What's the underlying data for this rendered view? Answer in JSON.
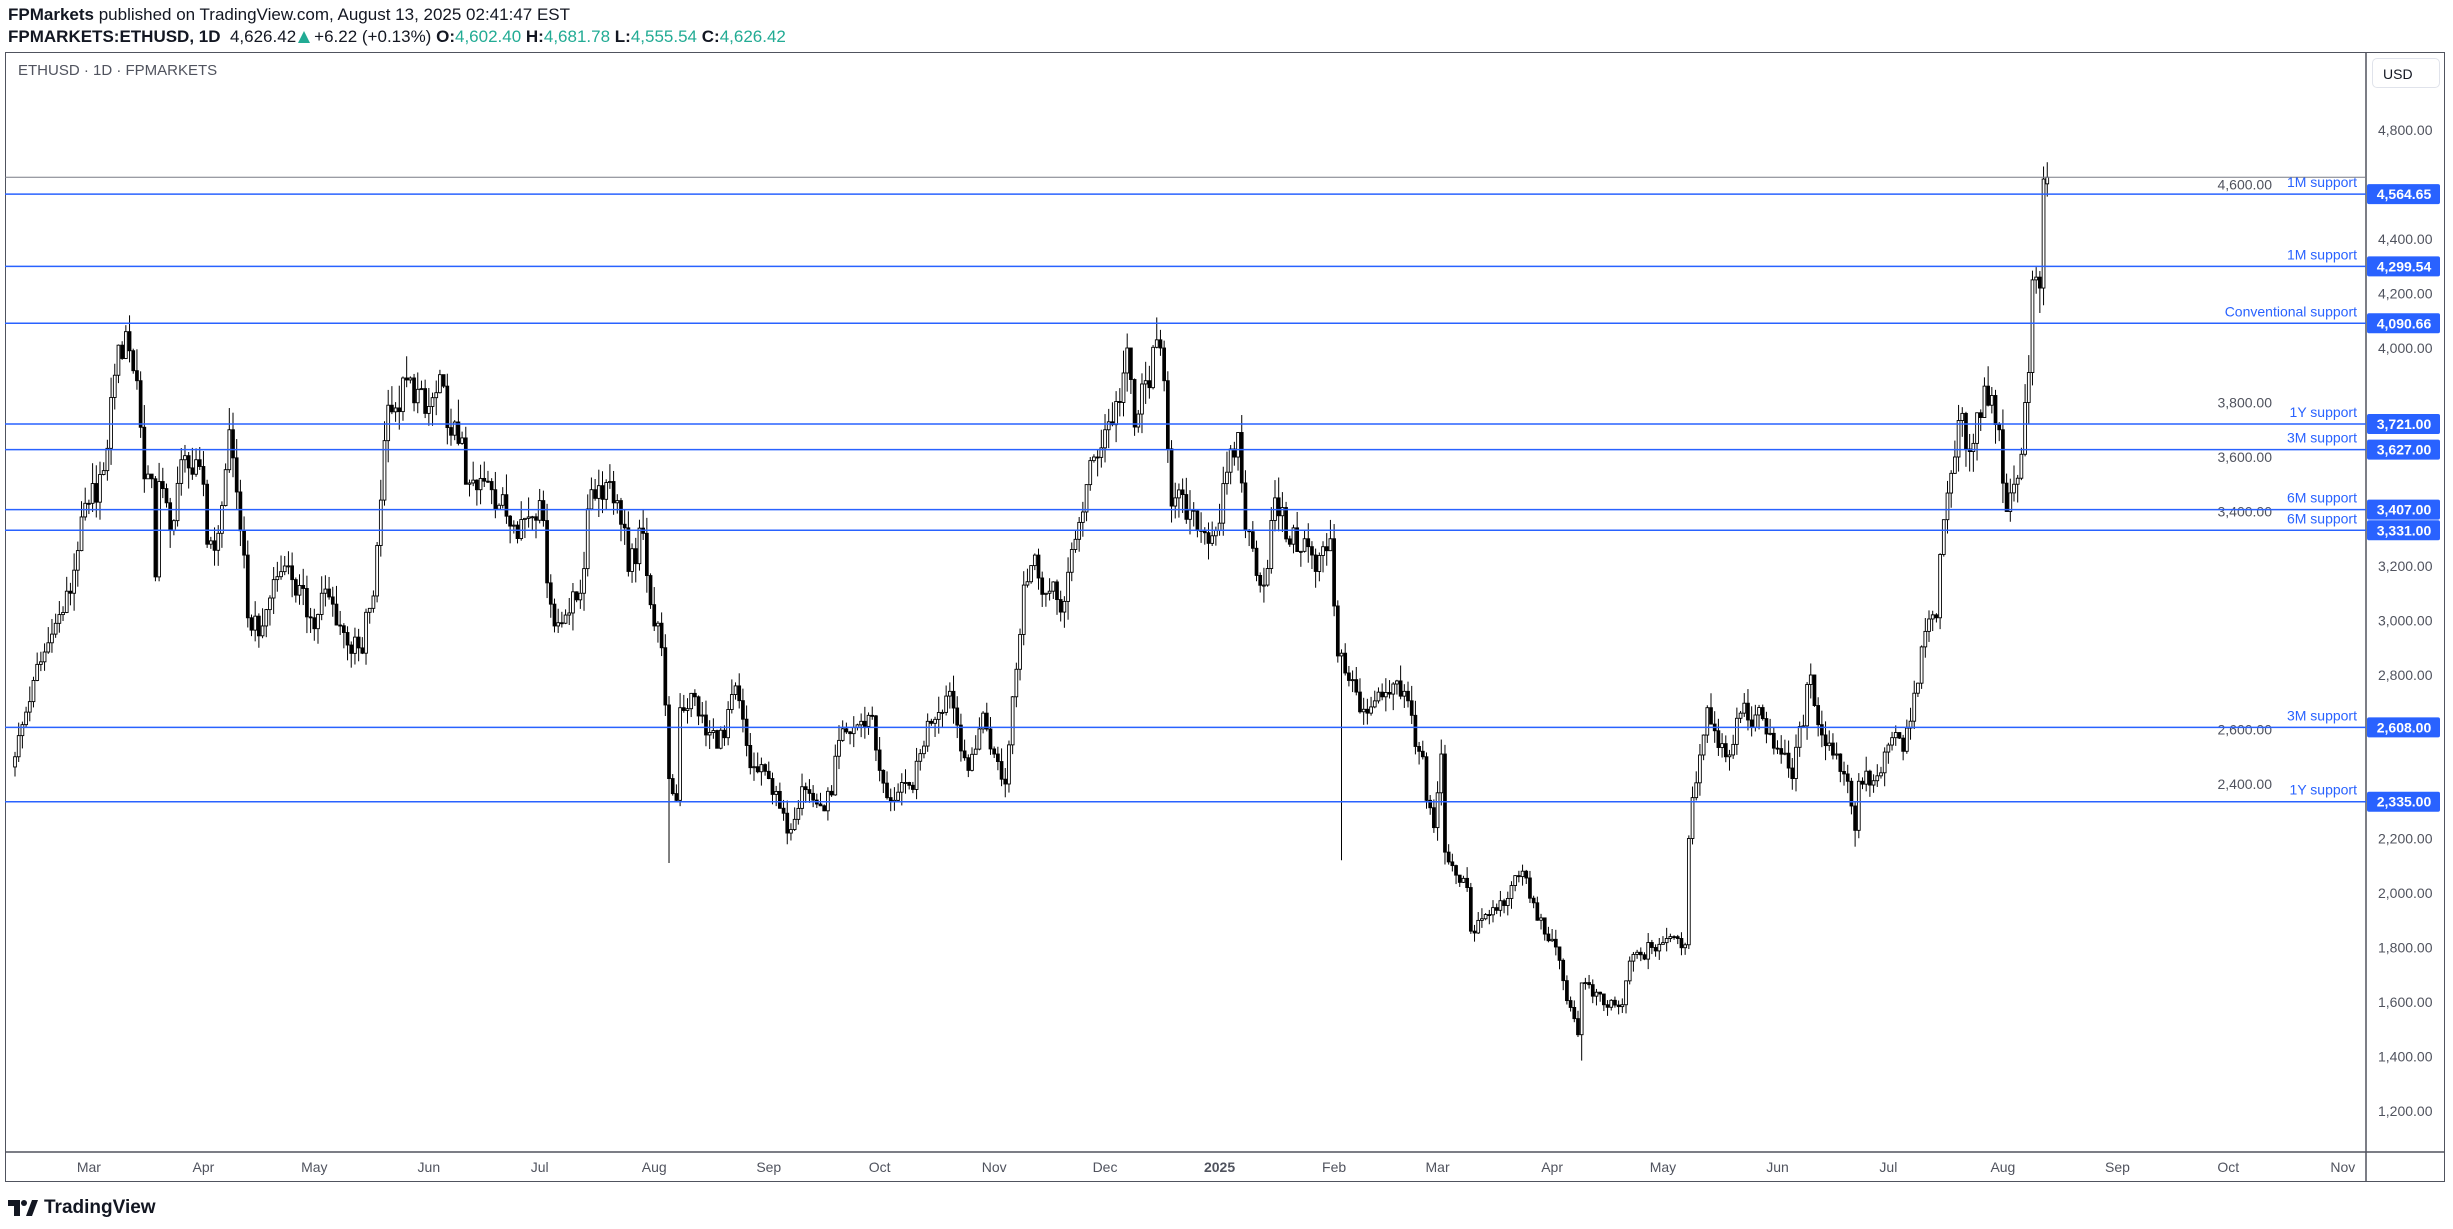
{
  "header": {
    "publisher": "FPMarkets",
    "published_text": "published on TradingView.com, August 13, 2025 02:41:47 EST",
    "symbol": "FPMARKETS:ETHUSD, 1D",
    "last": "4,626.42",
    "change": "+6.22 (+0.13%)",
    "open_label": "O:",
    "open": "4,602.40",
    "high_label": "H:",
    "high": "4,681.78",
    "low_label": "L:",
    "low": "4,555.54",
    "close_label": "C:",
    "close": "4,626.42"
  },
  "legend": "ETHUSD · 1D · FPMARKETS",
  "currency": "USD",
  "brand": "TradingView",
  "colors": {
    "level": "#2962ff",
    "up_fill": "#ffffff",
    "down_fill": "#000000",
    "candle_stroke": "#000000",
    "change_up": "#22ab94"
  },
  "chart_data": {
    "type": "candlestick",
    "interval": "1D",
    "ylim": [
      1100,
      4900
    ],
    "y_ticks": [
      "4,800.00",
      "4,600.00",
      "4,400.00",
      "4,200.00",
      "4,000.00",
      "3,800.00",
      "3,600.00",
      "3,400.00",
      "3,200.00",
      "3,000.00",
      "2,800.00",
      "2,600.00",
      "2,400.00",
      "2,200.00",
      "2,000.00",
      "1,800.00",
      "1,600.00",
      "1,400.00",
      "1,200.00"
    ],
    "y_tick_values": [
      4800,
      4600,
      4400,
      4200,
      4000,
      3800,
      3600,
      3400,
      3200,
      3000,
      2800,
      2600,
      2400,
      2200,
      2000,
      1800,
      1600,
      1400,
      1200
    ],
    "x_ticks": [
      {
        "label": "Mar",
        "date": "2024-03-01"
      },
      {
        "label": "Apr",
        "date": "2024-04-01"
      },
      {
        "label": "May",
        "date": "2024-05-01"
      },
      {
        "label": "Jun",
        "date": "2024-06-01"
      },
      {
        "label": "Jul",
        "date": "2024-07-01"
      },
      {
        "label": "Aug",
        "date": "2024-08-01"
      },
      {
        "label": "Sep",
        "date": "2024-09-01"
      },
      {
        "label": "Oct",
        "date": "2024-10-01"
      },
      {
        "label": "Nov",
        "date": "2024-11-01"
      },
      {
        "label": "Dec",
        "date": "2024-12-01"
      },
      {
        "label": "2025",
        "date": "2025-01-01"
      },
      {
        "label": "Feb",
        "date": "2025-02-01"
      },
      {
        "label": "Mar",
        "date": "2025-03-01"
      },
      {
        "label": "Apr",
        "date": "2025-04-01"
      },
      {
        "label": "May",
        "date": "2025-05-01"
      },
      {
        "label": "Jun",
        "date": "2025-06-01"
      },
      {
        "label": "Jul",
        "date": "2025-07-01"
      },
      {
        "label": "Aug",
        "date": "2025-08-01"
      },
      {
        "label": "Sep",
        "date": "2025-09-01"
      },
      {
        "label": "Oct",
        "date": "2025-10-01"
      },
      {
        "label": "Nov",
        "date": "2025-11-01"
      }
    ],
    "levels": [
      {
        "label": "1M support",
        "value": 4564.65,
        "badge": "4,564.65"
      },
      {
        "label": "1M support",
        "value": 4299.54,
        "badge": "4,299.54"
      },
      {
        "label": "Conventional support",
        "value": 4090.66,
        "badge": "4,090.66"
      },
      {
        "label": "1Y support",
        "value": 3721.0,
        "badge": "3,721.00"
      },
      {
        "label": "3M support",
        "value": 3627.0,
        "badge": "3,627.00"
      },
      {
        "label": "6M support",
        "value": 3407.0,
        "badge": "3,407.00"
      },
      {
        "label": "6M support",
        "value": 3331.0,
        "badge": "3,331.00"
      },
      {
        "label": "3M support",
        "value": 2608.0,
        "badge": "2,608.00"
      },
      {
        "label": "1Y support",
        "value": 2335.0,
        "badge": "2,335.00"
      }
    ],
    "closes": [
      [
        "2024-02-10",
        2500
      ],
      [
        "2024-02-15",
        2780
      ],
      [
        "2024-02-20",
        2950
      ],
      [
        "2024-02-25",
        3100
      ],
      [
        "2024-02-28",
        3380
      ],
      [
        "2024-03-01",
        3430
      ],
      [
        "2024-03-05",
        3550
      ],
      [
        "2024-03-08",
        3900
      ],
      [
        "2024-03-11",
        4060
      ],
      [
        "2024-03-12",
        3990
      ],
      [
        "2024-03-14",
        3880
      ],
      [
        "2024-03-16",
        3520
      ],
      [
        "2024-03-18",
        3520
      ],
      [
        "2024-03-19",
        3160
      ],
      [
        "2024-03-20",
        3510
      ],
      [
        "2024-03-23",
        3330
      ],
      [
        "2024-03-26",
        3590
      ],
      [
        "2024-03-28",
        3560
      ],
      [
        "2024-04-01",
        3500
      ],
      [
        "2024-04-02",
        3280
      ],
      [
        "2024-04-05",
        3320
      ],
      [
        "2024-04-08",
        3700
      ],
      [
        "2024-04-12",
        3240
      ],
      [
        "2024-04-13",
        3010
      ],
      [
        "2024-04-17",
        2980
      ],
      [
        "2024-04-20",
        3150
      ],
      [
        "2024-04-23",
        3200
      ],
      [
        "2024-04-25",
        3150
      ],
      [
        "2024-04-30",
        3010
      ],
      [
        "2024-05-01",
        2970
      ],
      [
        "2024-05-03",
        3100
      ],
      [
        "2024-05-06",
        3060
      ],
      [
        "2024-05-10",
        2910
      ],
      [
        "2024-05-14",
        2880
      ],
      [
        "2024-05-15",
        3030
      ],
      [
        "2024-05-17",
        3090
      ],
      [
        "2024-05-20",
        3660
      ],
      [
        "2024-05-21",
        3790
      ],
      [
        "2024-05-23",
        3780
      ],
      [
        "2024-05-27",
        3890
      ],
      [
        "2024-05-31",
        3760
      ],
      [
        "2024-06-05",
        3860
      ],
      [
        "2024-06-07",
        3680
      ],
      [
        "2024-06-10",
        3670
      ],
      [
        "2024-06-11",
        3500
      ],
      [
        "2024-06-14",
        3480
      ],
      [
        "2024-06-17",
        3510
      ],
      [
        "2024-06-18",
        3480
      ],
      [
        "2024-06-24",
        3350
      ],
      [
        "2024-06-28",
        3380
      ],
      [
        "2024-07-01",
        3440
      ],
      [
        "2024-07-04",
        3060
      ],
      [
        "2024-07-05",
        2980
      ],
      [
        "2024-07-08",
        3020
      ],
      [
        "2024-07-12",
        3100
      ],
      [
        "2024-07-15",
        3480
      ],
      [
        "2024-07-20",
        3510
      ],
      [
        "2024-07-22",
        3440
      ],
      [
        "2024-07-24",
        3340
      ],
      [
        "2024-07-25",
        3180
      ],
      [
        "2024-07-29",
        3320
      ],
      [
        "2024-08-01",
        2980
      ],
      [
        "2024-08-02",
        2990
      ],
      [
        "2024-08-03",
        2900
      ],
      [
        "2024-08-04",
        2690
      ],
      [
        "2024-08-05",
        2420
      ],
      [
        "2024-08-07",
        2340
      ],
      [
        "2024-08-08",
        2680
      ],
      [
        "2024-08-12",
        2720
      ],
      [
        "2024-08-15",
        2580
      ],
      [
        "2024-08-20",
        2570
      ],
      [
        "2024-08-23",
        2760
      ],
      [
        "2024-08-27",
        2460
      ],
      [
        "2024-09-01",
        2420
      ],
      [
        "2024-09-06",
        2220
      ],
      [
        "2024-09-10",
        2390
      ],
      [
        "2024-09-15",
        2320
      ],
      [
        "2024-09-18",
        2360
      ],
      [
        "2024-09-20",
        2560
      ],
      [
        "2024-09-26",
        2630
      ],
      [
        "2024-09-29",
        2650
      ],
      [
        "2024-10-01",
        2450
      ],
      [
        "2024-10-03",
        2350
      ],
      [
        "2024-10-10",
        2380
      ],
      [
        "2024-10-14",
        2630
      ],
      [
        "2024-10-20",
        2740
      ],
      [
        "2024-10-25",
        2450
      ],
      [
        "2024-10-29",
        2660
      ],
      [
        "2024-11-01",
        2510
      ],
      [
        "2024-11-04",
        2400
      ],
      [
        "2024-11-06",
        2720
      ],
      [
        "2024-11-09",
        3130
      ],
      [
        "2024-11-12",
        3240
      ],
      [
        "2024-11-15",
        3100
      ],
      [
        "2024-11-20",
        3070
      ],
      [
        "2024-11-24",
        3360
      ],
      [
        "2024-11-28",
        3600
      ],
      [
        "2024-12-01",
        3700
      ],
      [
        "2024-12-05",
        3800
      ],
      [
        "2024-12-07",
        4000
      ],
      [
        "2024-12-09",
        3710
      ],
      [
        "2024-12-12",
        3880
      ],
      [
        "2024-12-16",
        4000
      ],
      [
        "2024-12-17",
        3880
      ],
      [
        "2024-12-18",
        3630
      ],
      [
        "2024-12-19",
        3420
      ],
      [
        "2024-12-20",
        3450
      ],
      [
        "2024-12-26",
        3330
      ],
      [
        "2024-12-31",
        3330
      ],
      [
        "2025-01-06",
        3690
      ],
      [
        "2025-01-08",
        3330
      ],
      [
        "2025-01-13",
        3130
      ],
      [
        "2025-01-16",
        3450
      ],
      [
        "2025-01-20",
        3280
      ],
      [
        "2025-01-24",
        3300
      ],
      [
        "2025-01-27",
        3180
      ],
      [
        "2025-01-31",
        3300
      ],
      [
        "2025-02-02",
        2870
      ],
      [
        "2025-02-03",
        2880
      ],
      [
        "2025-02-05",
        2780
      ],
      [
        "2025-02-10",
        2660
      ],
      [
        "2025-02-14",
        2720
      ],
      [
        "2025-02-20",
        2740
      ],
      [
        "2025-02-24",
        2520
      ],
      [
        "2025-02-25",
        2500
      ],
      [
        "2025-02-26",
        2340
      ],
      [
        "2025-02-28",
        2240
      ],
      [
        "2025-03-02",
        2510
      ],
      [
        "2025-03-03",
        2150
      ],
      [
        "2025-03-09",
        2020
      ],
      [
        "2025-03-10",
        1860
      ],
      [
        "2025-03-15",
        1920
      ],
      [
        "2025-03-20",
        1980
      ],
      [
        "2025-03-24",
        2080
      ],
      [
        "2025-03-28",
        1900
      ],
      [
        "2025-04-01",
        1830
      ],
      [
        "2025-04-06",
        1580
      ],
      [
        "2025-04-08",
        1480
      ],
      [
        "2025-04-09",
        1670
      ],
      [
        "2025-04-15",
        1590
      ],
      [
        "2025-04-20",
        1590
      ],
      [
        "2025-04-22",
        1750
      ],
      [
        "2025-04-28",
        1800
      ],
      [
        "2025-05-03",
        1840
      ],
      [
        "2025-05-07",
        1810
      ],
      [
        "2025-05-08",
        2200
      ],
      [
        "2025-05-09",
        2350
      ],
      [
        "2025-05-13",
        2680
      ],
      [
        "2025-05-18",
        2500
      ],
      [
        "2025-05-22",
        2660
      ],
      [
        "2025-05-28",
        2640
      ],
      [
        "2025-06-01",
        2530
      ],
      [
        "2025-06-05",
        2420
      ],
      [
        "2025-06-10",
        2800
      ],
      [
        "2025-06-13",
        2580
      ],
      [
        "2025-06-17",
        2510
      ],
      [
        "2025-06-20",
        2410
      ],
      [
        "2025-06-22",
        2230
      ],
      [
        "2025-06-23",
        2410
      ],
      [
        "2025-06-28",
        2430
      ],
      [
        "2025-07-02",
        2570
      ],
      [
        "2025-07-05",
        2520
      ],
      [
        "2025-07-09",
        2770
      ],
      [
        "2025-07-11",
        2960
      ],
      [
        "2025-07-14",
        3010
      ],
      [
        "2025-07-16",
        3370
      ],
      [
        "2025-07-18",
        3540
      ],
      [
        "2025-07-21",
        3760
      ],
      [
        "2025-07-23",
        3620
      ],
      [
        "2025-07-27",
        3860
      ],
      [
        "2025-07-28",
        3790
      ],
      [
        "2025-07-31",
        3700
      ],
      [
        "2025-08-02",
        3400
      ],
      [
        "2025-08-04",
        3500
      ],
      [
        "2025-08-06",
        3610
      ],
      [
        "2025-08-08",
        3910
      ],
      [
        "2025-08-09",
        4250
      ],
      [
        "2025-08-10",
        4260
      ],
      [
        "2025-08-11",
        4220
      ],
      [
        "2025-08-12",
        4620
      ]
    ],
    "notable_lows": [
      [
        "2024-08-05",
        2110
      ],
      [
        "2025-02-03",
        2120
      ],
      [
        "2025-04-09",
        1385
      ],
      [
        "2025-06-22",
        2170
      ]
    ],
    "last_candle": {
      "date": "2025-08-13",
      "open": 4602.4,
      "high": 4681.78,
      "low": 4555.54,
      "close": 4626.42
    }
  }
}
